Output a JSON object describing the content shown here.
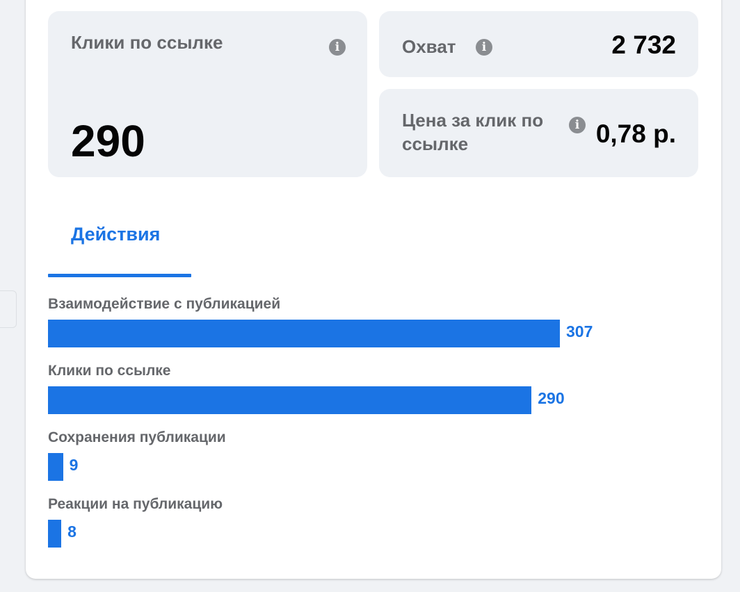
{
  "metrics": {
    "link_clicks": {
      "label": "Клики по ссылке",
      "value": "290",
      "icon": "info-icon"
    },
    "reach": {
      "label": "Охват",
      "value": "2 732",
      "icon": "info-icon"
    },
    "cost_per_click": {
      "label": "Цена за клик по ссылке",
      "value": "0,78 р.",
      "icon": "info-icon"
    }
  },
  "tabs": [
    {
      "label": "Действия",
      "active": true
    }
  ],
  "colors": {
    "accent": "#1b74e4",
    "tile": "#eef1f5",
    "label": "#65676b"
  },
  "chart_data": {
    "type": "bar",
    "orientation": "horizontal",
    "categories": [
      "Взаимодействие с публикацией",
      "Клики по ссылке",
      "Сохранения публикации",
      "Реакции на публикацию"
    ],
    "values": [
      307,
      290,
      9,
      8
    ]
  }
}
